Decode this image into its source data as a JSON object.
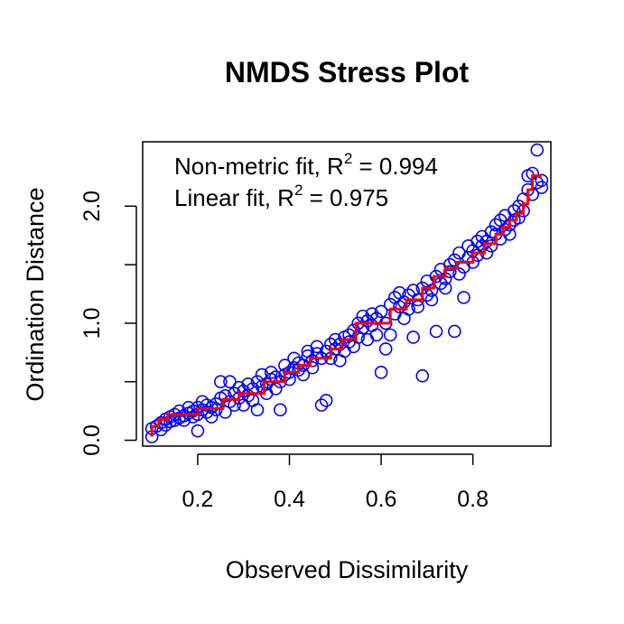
{
  "chart_data": {
    "type": "scatter",
    "title": "NMDS Stress Plot",
    "xlabel": "Observed Dissimilarity",
    "ylabel": "Ordination Distance",
    "xlim": [
      0.08,
      0.97
    ],
    "ylim": [
      -0.05,
      2.55
    ],
    "x_ticks": [
      0.2,
      0.4,
      0.6,
      0.8
    ],
    "y_ticks": [
      0.0,
      0.5,
      1.0,
      1.5,
      2.0
    ],
    "y_tick_labels": [
      "0.0",
      "",
      "1.0",
      "",
      "2.0"
    ],
    "grid": false,
    "legend": {
      "placement": "top-left",
      "entries": [
        {
          "prefix": "Non-metric fit, R",
          "sup": "2",
          "suffix": " = 0.994"
        },
        {
          "prefix": "Linear fit, R",
          "sup": "2",
          "suffix": " = 0.975"
        }
      ]
    },
    "series": [
      {
        "kind": "points",
        "color": "#0000ff",
        "points": [
          [
            0.1,
            0.03
          ],
          [
            0.1,
            0.1
          ],
          [
            0.11,
            0.12
          ],
          [
            0.12,
            0.09
          ],
          [
            0.12,
            0.15
          ],
          [
            0.13,
            0.13
          ],
          [
            0.13,
            0.18
          ],
          [
            0.14,
            0.16
          ],
          [
            0.14,
            0.2
          ],
          [
            0.15,
            0.17
          ],
          [
            0.15,
            0.22
          ],
          [
            0.16,
            0.19
          ],
          [
            0.16,
            0.25
          ],
          [
            0.17,
            0.21
          ],
          [
            0.17,
            0.17
          ],
          [
            0.18,
            0.23
          ],
          [
            0.18,
            0.28
          ],
          [
            0.19,
            0.2
          ],
          [
            0.19,
            0.25
          ],
          [
            0.2,
            0.22
          ],
          [
            0.2,
            0.28
          ],
          [
            0.2,
            0.08
          ],
          [
            0.21,
            0.26
          ],
          [
            0.21,
            0.33
          ],
          [
            0.22,
            0.24
          ],
          [
            0.22,
            0.3
          ],
          [
            0.23,
            0.28
          ],
          [
            0.23,
            0.2
          ],
          [
            0.24,
            0.31
          ],
          [
            0.24,
            0.26
          ],
          [
            0.25,
            0.5
          ],
          [
            0.25,
            0.36
          ],
          [
            0.26,
            0.24
          ],
          [
            0.26,
            0.38
          ],
          [
            0.27,
            0.33
          ],
          [
            0.27,
            0.5
          ],
          [
            0.28,
            0.4
          ],
          [
            0.28,
            0.3
          ],
          [
            0.29,
            0.45
          ],
          [
            0.29,
            0.36
          ],
          [
            0.3,
            0.42
          ],
          [
            0.3,
            0.3
          ],
          [
            0.31,
            0.38
          ],
          [
            0.31,
            0.48
          ],
          [
            0.32,
            0.44
          ],
          [
            0.32,
            0.34
          ],
          [
            0.33,
            0.5
          ],
          [
            0.33,
            0.26
          ],
          [
            0.34,
            0.46
          ],
          [
            0.34,
            0.56
          ],
          [
            0.35,
            0.48
          ],
          [
            0.35,
            0.4
          ],
          [
            0.36,
            0.52
          ],
          [
            0.36,
            0.58
          ],
          [
            0.37,
            0.44
          ],
          [
            0.37,
            0.54
          ],
          [
            0.38,
            0.5
          ],
          [
            0.38,
            0.26
          ],
          [
            0.39,
            0.56
          ],
          [
            0.39,
            0.64
          ],
          [
            0.4,
            0.58
          ],
          [
            0.4,
            0.52
          ],
          [
            0.41,
            0.62
          ],
          [
            0.41,
            0.7
          ],
          [
            0.42,
            0.6
          ],
          [
            0.42,
            0.66
          ],
          [
            0.43,
            0.56
          ],
          [
            0.43,
            0.64
          ],
          [
            0.44,
            0.72
          ],
          [
            0.44,
            0.76
          ],
          [
            0.45,
            0.68
          ],
          [
            0.45,
            0.62
          ],
          [
            0.46,
            0.74
          ],
          [
            0.46,
            0.8
          ],
          [
            0.47,
            0.3
          ],
          [
            0.47,
            0.7
          ],
          [
            0.48,
            0.34
          ],
          [
            0.48,
            0.76
          ],
          [
            0.49,
            0.82
          ],
          [
            0.49,
            0.7
          ],
          [
            0.5,
            0.78
          ],
          [
            0.5,
            0.86
          ],
          [
            0.51,
            0.68
          ],
          [
            0.51,
            0.82
          ],
          [
            0.52,
            0.88
          ],
          [
            0.52,
            0.76
          ],
          [
            0.53,
            0.9
          ],
          [
            0.53,
            0.84
          ],
          [
            0.54,
            0.94
          ],
          [
            0.54,
            0.8
          ],
          [
            0.55,
            1.0
          ],
          [
            0.55,
            0.88
          ],
          [
            0.56,
            1.06
          ],
          [
            0.56,
            0.96
          ],
          [
            0.57,
            1.02
          ],
          [
            0.57,
            0.86
          ],
          [
            0.58,
            1.08
          ],
          [
            0.58,
            0.98
          ],
          [
            0.59,
            1.04
          ],
          [
            0.59,
            0.9
          ],
          [
            0.6,
            1.1
          ],
          [
            0.6,
            0.58
          ],
          [
            0.61,
            1.0
          ],
          [
            0.61,
            0.78
          ],
          [
            0.62,
            1.16
          ],
          [
            0.62,
            0.9
          ],
          [
            0.63,
            1.22
          ],
          [
            0.63,
            1.08
          ],
          [
            0.64,
            1.14
          ],
          [
            0.64,
            1.26
          ],
          [
            0.65,
            1.18
          ],
          [
            0.65,
            1.04
          ],
          [
            0.66,
            1.24
          ],
          [
            0.66,
            1.12
          ],
          [
            0.67,
            0.88
          ],
          [
            0.67,
            1.28
          ],
          [
            0.68,
            1.2
          ],
          [
            0.68,
            1.14
          ],
          [
            0.69,
            0.55
          ],
          [
            0.69,
            1.3
          ],
          [
            0.7,
            1.24
          ],
          [
            0.7,
            1.36
          ],
          [
            0.71,
            1.28
          ],
          [
            0.71,
            1.2
          ],
          [
            0.72,
            0.93
          ],
          [
            0.72,
            1.4
          ],
          [
            0.73,
            1.34
          ],
          [
            0.73,
            1.46
          ],
          [
            0.74,
            1.38
          ],
          [
            0.74,
            1.3
          ],
          [
            0.75,
            1.5
          ],
          [
            0.75,
            1.44
          ],
          [
            0.76,
            0.93
          ],
          [
            0.76,
            1.54
          ],
          [
            0.77,
            1.42
          ],
          [
            0.77,
            1.6
          ],
          [
            0.78,
            1.48
          ],
          [
            0.78,
            1.22
          ],
          [
            0.79,
            1.56
          ],
          [
            0.79,
            1.66
          ],
          [
            0.8,
            1.52
          ],
          [
            0.8,
            1.62
          ],
          [
            0.81,
            1.7
          ],
          [
            0.81,
            1.58
          ],
          [
            0.82,
            1.66
          ],
          [
            0.82,
            1.74
          ],
          [
            0.83,
            1.6
          ],
          [
            0.83,
            1.7
          ],
          [
            0.84,
            1.78
          ],
          [
            0.84,
            1.66
          ],
          [
            0.85,
            1.76
          ],
          [
            0.85,
            1.84
          ],
          [
            0.86,
            1.72
          ],
          [
            0.86,
            1.88
          ],
          [
            0.87,
            1.8
          ],
          [
            0.87,
            1.92
          ],
          [
            0.88,
            1.84
          ],
          [
            0.88,
            1.76
          ],
          [
            0.89,
            1.96
          ],
          [
            0.89,
            1.88
          ],
          [
            0.9,
            2.0
          ],
          [
            0.9,
            1.9
          ],
          [
            0.91,
            2.06
          ],
          [
            0.91,
            1.96
          ],
          [
            0.92,
            2.14
          ],
          [
            0.92,
            2.26
          ],
          [
            0.93,
            2.1
          ],
          [
            0.93,
            2.28
          ],
          [
            0.94,
            2.2
          ],
          [
            0.94,
            2.48
          ],
          [
            0.95,
            2.16
          ],
          [
            0.95,
            2.22
          ]
        ]
      },
      {
        "kind": "step-line",
        "color": "#ff0000",
        "points": [
          [
            0.1,
            0.03
          ],
          [
            0.1,
            0.12
          ],
          [
            0.115,
            0.12
          ],
          [
            0.115,
            0.18
          ],
          [
            0.135,
            0.18
          ],
          [
            0.135,
            0.22
          ],
          [
            0.2,
            0.22
          ],
          [
            0.2,
            0.27
          ],
          [
            0.255,
            0.27
          ],
          [
            0.255,
            0.35
          ],
          [
            0.29,
            0.35
          ],
          [
            0.29,
            0.4
          ],
          [
            0.345,
            0.4
          ],
          [
            0.345,
            0.5
          ],
          [
            0.39,
            0.5
          ],
          [
            0.39,
            0.58
          ],
          [
            0.42,
            0.58
          ],
          [
            0.42,
            0.64
          ],
          [
            0.445,
            0.64
          ],
          [
            0.445,
            0.7
          ],
          [
            0.49,
            0.7
          ],
          [
            0.49,
            0.78
          ],
          [
            0.515,
            0.78
          ],
          [
            0.515,
            0.86
          ],
          [
            0.545,
            0.86
          ],
          [
            0.545,
            1.0
          ],
          [
            0.62,
            1.0
          ],
          [
            0.62,
            1.12
          ],
          [
            0.655,
            1.12
          ],
          [
            0.655,
            1.2
          ],
          [
            0.69,
            1.2
          ],
          [
            0.69,
            1.3
          ],
          [
            0.715,
            1.3
          ],
          [
            0.715,
            1.4
          ],
          [
            0.74,
            1.4
          ],
          [
            0.74,
            1.47
          ],
          [
            0.765,
            1.47
          ],
          [
            0.765,
            1.52
          ],
          [
            0.8,
            1.52
          ],
          [
            0.8,
            1.6
          ],
          [
            0.825,
            1.6
          ],
          [
            0.825,
            1.68
          ],
          [
            0.85,
            1.68
          ],
          [
            0.85,
            1.76
          ],
          [
            0.865,
            1.76
          ],
          [
            0.865,
            1.82
          ],
          [
            0.88,
            1.82
          ],
          [
            0.88,
            1.88
          ],
          [
            0.895,
            1.88
          ],
          [
            0.895,
            1.94
          ],
          [
            0.91,
            1.94
          ],
          [
            0.91,
            2.02
          ],
          [
            0.92,
            2.02
          ],
          [
            0.92,
            2.14
          ],
          [
            0.93,
            2.14
          ],
          [
            0.93,
            2.26
          ],
          [
            0.95,
            2.26
          ]
        ]
      }
    ]
  }
}
